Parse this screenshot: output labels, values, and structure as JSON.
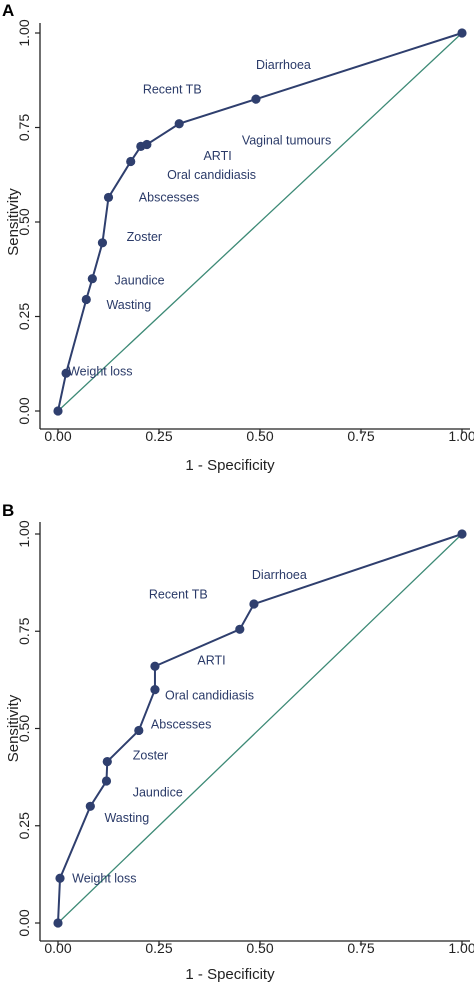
{
  "colors": {
    "roc_line": "#2f3f6e",
    "reference_line": "#3d8a76",
    "annotation_text": "#2a3a68",
    "axis": "#222222",
    "background": "#ffffff"
  },
  "chart_data": [
    {
      "type": "line",
      "panel_label": "A",
      "xlabel": "1 - Specificity",
      "ylabel": "Sensitivity",
      "xlim": [
        0,
        1
      ],
      "ylim": [
        0,
        1
      ],
      "x_ticks": [
        "0.00",
        "0.25",
        "0.50",
        "0.75",
        "1.00"
      ],
      "y_ticks": [
        "0.00",
        "0.25",
        "0.50",
        "0.75",
        "1.00"
      ],
      "grid": false,
      "series": [
        {
          "x": [
            0.0,
            0.02,
            0.07,
            0.085,
            0.11,
            0.125,
            0.18,
            0.205,
            0.22,
            0.3,
            0.49,
            1.0
          ],
          "y": [
            0.0,
            0.1,
            0.295,
            0.35,
            0.445,
            0.565,
            0.66,
            0.7,
            0.705,
            0.76,
            0.825,
            1.0
          ]
        },
        {
          "x": [
            0.0,
            1.0
          ],
          "y": [
            0.0,
            1.0
          ]
        }
      ],
      "annotations": [
        {
          "text": "Weight loss",
          "x": 0.025,
          "y": 0.105
        },
        {
          "text": "Wasting",
          "x": 0.12,
          "y": 0.28
        },
        {
          "text": "Jaundice",
          "x": 0.14,
          "y": 0.345
        },
        {
          "text": "Zoster",
          "x": 0.17,
          "y": 0.46
        },
        {
          "text": "Abscesses",
          "x": 0.2,
          "y": 0.565
        },
        {
          "text": "Oral candidiasis",
          "x": 0.27,
          "y": 0.625
        },
        {
          "text": "ARTI",
          "x": 0.36,
          "y": 0.675
        },
        {
          "text": "Vaginal tumours",
          "x": 0.455,
          "y": 0.715
        },
        {
          "text": "Recent TB",
          "x": 0.21,
          "y": 0.85
        },
        {
          "text": "Diarrhoea",
          "x": 0.49,
          "y": 0.915
        }
      ]
    },
    {
      "type": "line",
      "panel_label": "B",
      "xlabel": "1 - Specificity",
      "ylabel": "Sensitivity",
      "xlim": [
        0,
        1
      ],
      "ylim": [
        0,
        1
      ],
      "x_ticks": [
        "0.00",
        "0.25",
        "0.50",
        "0.75",
        "1.00"
      ],
      "y_ticks": [
        "0.00",
        "0.25",
        "0.50",
        "0.75",
        "1.00"
      ],
      "grid": false,
      "series": [
        {
          "x": [
            0.0,
            0.005,
            0.08,
            0.12,
            0.122,
            0.2,
            0.24,
            0.24,
            0.45,
            0.485,
            1.0
          ],
          "y": [
            0.0,
            0.115,
            0.3,
            0.365,
            0.415,
            0.495,
            0.6,
            0.66,
            0.755,
            0.82,
            1.0
          ]
        },
        {
          "x": [
            0.0,
            1.0
          ],
          "y": [
            0.0,
            1.0
          ]
        }
      ],
      "annotations": [
        {
          "text": "Weight loss",
          "x": 0.035,
          "y": 0.115
        },
        {
          "text": "Wasting",
          "x": 0.115,
          "y": 0.27
        },
        {
          "text": "Jaundice",
          "x": 0.185,
          "y": 0.335
        },
        {
          "text": "Zoster",
          "x": 0.185,
          "y": 0.43
        },
        {
          "text": "Abscesses",
          "x": 0.23,
          "y": 0.51
        },
        {
          "text": "Oral candidiasis",
          "x": 0.265,
          "y": 0.585
        },
        {
          "text": "ARTI",
          "x": 0.345,
          "y": 0.675
        },
        {
          "text": "Recent TB",
          "x": 0.225,
          "y": 0.845
        },
        {
          "text": "Diarrhoea",
          "x": 0.48,
          "y": 0.895
        }
      ]
    }
  ]
}
